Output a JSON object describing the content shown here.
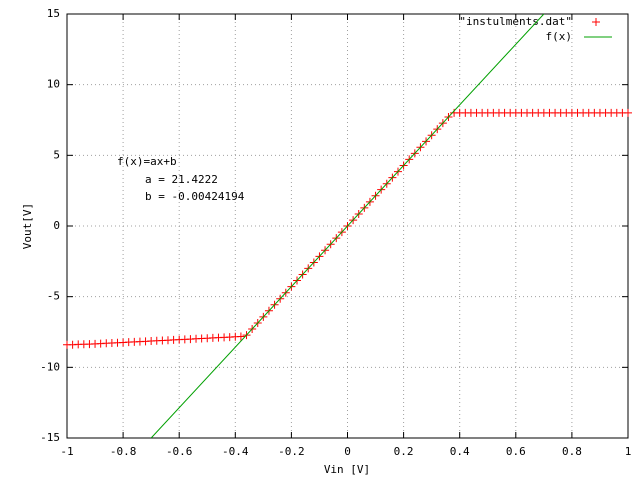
{
  "chart_data": {
    "type": "scatter",
    "xlabel": "Vin [V]",
    "ylabel": "Vout[V]",
    "annotations": [
      "f(x)=ax+b",
      "a = 21.4222",
      "b = -0.00424194"
    ],
    "xlim": [
      -1,
      1
    ],
    "ylim": [
      -15,
      15
    ],
    "xticks": [
      -1,
      -0.8,
      -0.6,
      -0.4,
      -0.2,
      0,
      0.2,
      0.4,
      0.6,
      0.8,
      1
    ],
    "yticks": [
      -15,
      -10,
      -5,
      0,
      5,
      10,
      15
    ],
    "grid": true,
    "legend": "top-right",
    "series": [
      {
        "name": "\"instulments.dat\"",
        "color": "#ff0000",
        "style": "points",
        "x": [
          -1,
          -0.98,
          -0.96,
          -0.94,
          -0.92,
          -0.9,
          -0.88,
          -0.86,
          -0.84,
          -0.82,
          -0.8,
          -0.78,
          -0.76,
          -0.74,
          -0.72,
          -0.7,
          -0.68,
          -0.66,
          -0.64,
          -0.62,
          -0.6,
          -0.58,
          -0.56,
          -0.54,
          -0.52,
          -0.5,
          -0.48,
          -0.46,
          -0.44,
          -0.42,
          -0.4,
          -0.38,
          -0.36,
          -0.34,
          -0.32,
          -0.3,
          -0.28,
          -0.26,
          -0.24,
          -0.22,
          -0.2,
          -0.18,
          -0.16,
          -0.14,
          -0.12,
          -0.1,
          -0.08,
          -0.06,
          -0.04,
          -0.02,
          0,
          0.02,
          0.04,
          0.06,
          0.08,
          0.1,
          0.12,
          0.14,
          0.16,
          0.18,
          0.2,
          0.22,
          0.24,
          0.26,
          0.28,
          0.3,
          0.32,
          0.34,
          0.36,
          0.38,
          0.4,
          0.42,
          0.44,
          0.46,
          0.48,
          0.5,
          0.52,
          0.54,
          0.56,
          0.58,
          0.6,
          0.62,
          0.64,
          0.66,
          0.68,
          0.7,
          0.72,
          0.74,
          0.76,
          0.78,
          0.8,
          0.82,
          0.84,
          0.86,
          0.88,
          0.9,
          0.92,
          0.94,
          0.96,
          0.98,
          1
        ],
        "values": [
          -8.4,
          -8.4,
          -8.38,
          -8.37,
          -8.36,
          -8.34,
          -8.32,
          -8.3,
          -8.28,
          -8.26,
          -8.24,
          -8.22,
          -8.2,
          -8.18,
          -8.16,
          -8.14,
          -8.12,
          -8.1,
          -8.08,
          -8.06,
          -8.04,
          -8.02,
          -8.0,
          -7.98,
          -7.96,
          -7.94,
          -7.92,
          -7.9,
          -7.88,
          -7.86,
          -7.84,
          -7.82,
          -7.72,
          -7.29,
          -6.86,
          -6.43,
          -6.0,
          -5.57,
          -5.15,
          -4.72,
          -4.29,
          -3.86,
          -3.43,
          -3.0,
          -2.58,
          -2.15,
          -1.72,
          -1.29,
          -0.86,
          -0.43,
          0.0,
          0.42,
          0.85,
          1.28,
          1.71,
          2.14,
          2.57,
          2.99,
          3.42,
          3.85,
          4.28,
          4.71,
          5.14,
          5.57,
          5.99,
          6.42,
          6.85,
          7.28,
          7.71,
          8.0,
          8.0,
          8.0,
          8.0,
          8.0,
          8.0,
          8.0,
          8.0,
          8.0,
          8.0,
          8.0,
          8.0,
          8.0,
          8.0,
          8.0,
          8.0,
          8.0,
          8.0,
          8.0,
          8.0,
          8.0,
          8.0,
          8.0,
          8.0,
          8.0,
          8.0,
          8.0,
          8.0,
          8.0,
          8.0,
          8.0,
          8.0
        ]
      },
      {
        "name": "f(x)",
        "color": "#00a000",
        "style": "line",
        "x": [
          -0.7,
          0.7
        ],
        "values": [
          -15,
          15
        ]
      }
    ]
  }
}
